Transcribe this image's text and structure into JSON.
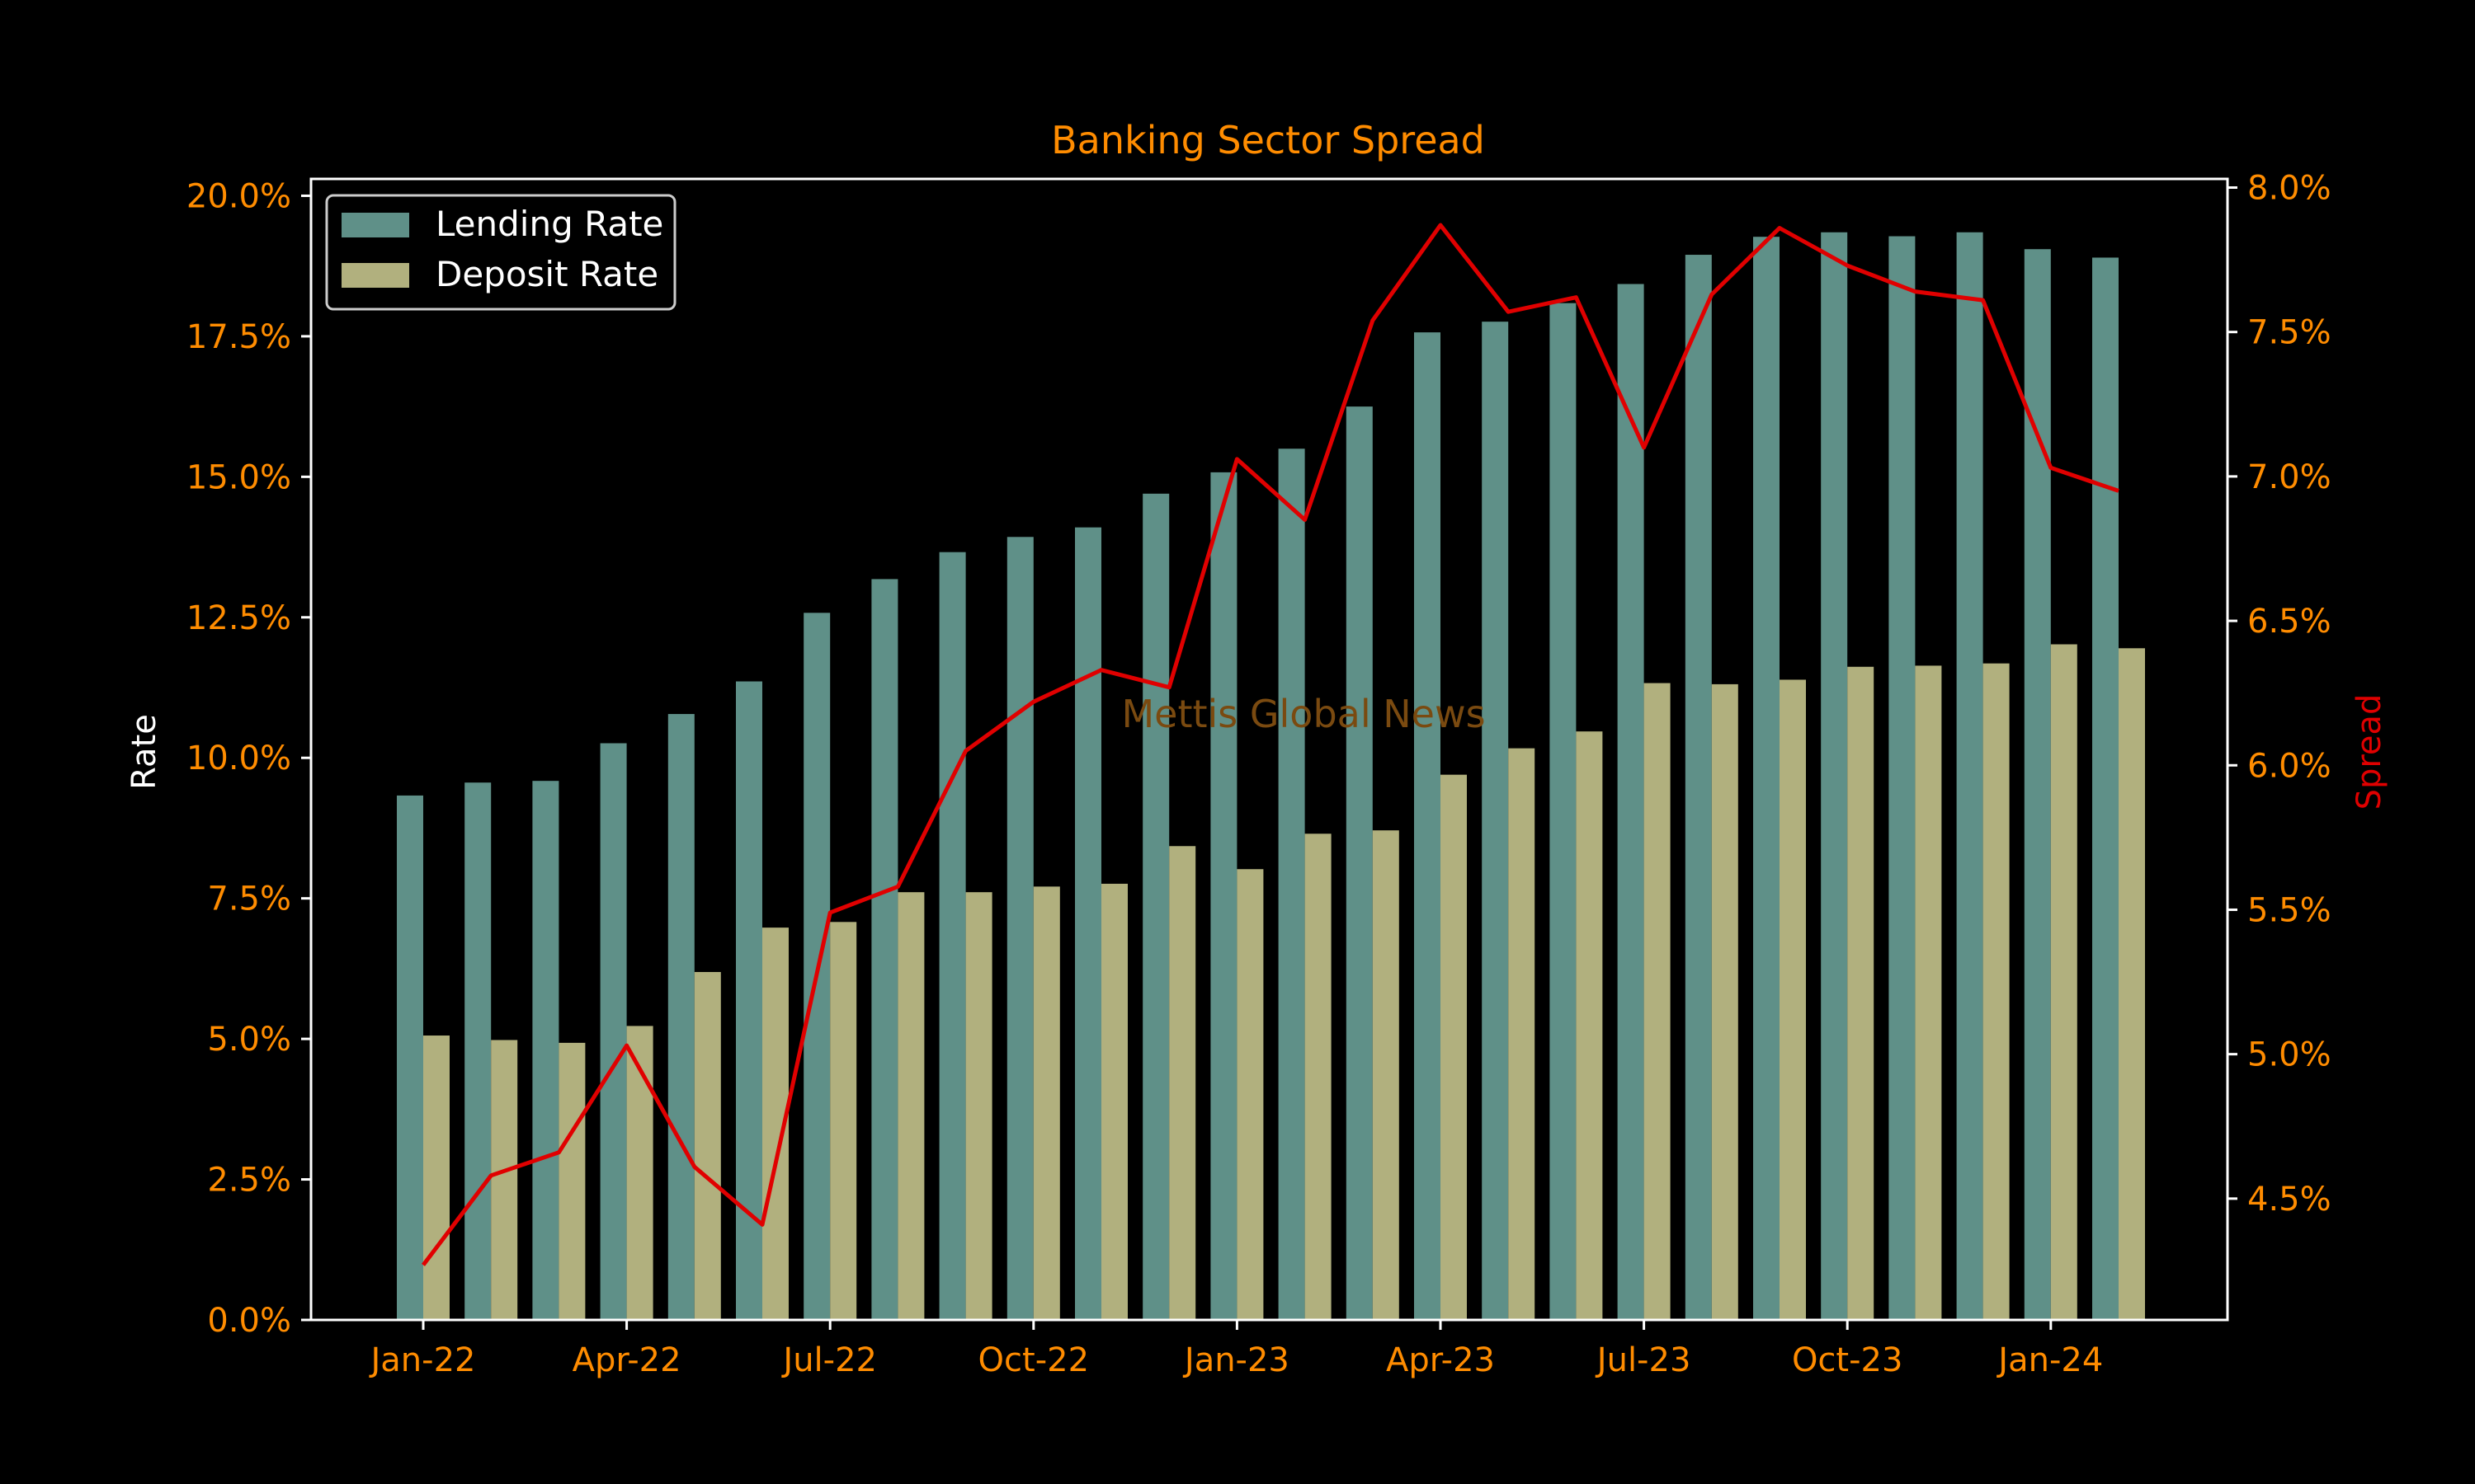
{
  "chart_data": {
    "type": "bar",
    "title": "Banking Sector Spread",
    "ylabel": "Rate",
    "y2label": "Spread",
    "watermark": "Mettis Global News",
    "x": [
      "2022-01",
      "2022-02",
      "2022-03",
      "2022-04",
      "2022-05",
      "2022-06",
      "2022-07",
      "2022-08",
      "2022-09",
      "2022-10",
      "2022-11",
      "2022-12",
      "2023-01",
      "2023-02",
      "2023-03",
      "2023-04",
      "2023-05",
      "2023-06",
      "2023-07",
      "2023-08",
      "2023-09",
      "2023-10",
      "2023-11",
      "2023-12",
      "2024-01",
      "2024-02"
    ],
    "xtick_labels": [
      "Jan-22",
      "Apr-22",
      "Jul-22",
      "Oct-22",
      "Jan-23",
      "Apr-23",
      "Jul-23",
      "Oct-23",
      "Jan-24"
    ],
    "ylim": [
      0,
      20.3
    ],
    "yticks": [
      0,
      2.5,
      5,
      7.5,
      10,
      12.5,
      15,
      17.5,
      20
    ],
    "ytick_labels": [
      "0.0%",
      "2.5%",
      "5.0%",
      "7.5%",
      "10.0%",
      "12.5%",
      "15.0%",
      "17.5%",
      "20.0%"
    ],
    "y2lim": [
      4.08,
      8.03
    ],
    "y2ticks": [
      4.5,
      5,
      5.5,
      6,
      6.5,
      7,
      7.5,
      8
    ],
    "y2tick_labels": [
      "4.5%",
      "5.0%",
      "5.5%",
      "6.0%",
      "6.5%",
      "7.0%",
      "7.5%",
      "8.0%"
    ],
    "legend": "top-left",
    "grid": false,
    "colors": {
      "background": "#000000",
      "axes": "#ffffff",
      "ticks": "#ff8c00",
      "title": "#ff8c00",
      "lending": "#5f9088",
      "deposit": "#b1b07e",
      "spread": "#e00000",
      "y2label": "#e00000",
      "watermark": "#7a4a10"
    },
    "series": [
      {
        "name": "Lending Rate",
        "kind": "bar",
        "axis": "left",
        "values": [
          9.33,
          9.56,
          9.59,
          10.26,
          10.78,
          11.36,
          12.58,
          13.18,
          13.66,
          13.93,
          14.1,
          14.7,
          15.08,
          15.5,
          16.25,
          17.57,
          17.76,
          18.09,
          18.43,
          18.95,
          19.27,
          19.35,
          19.28,
          19.35,
          19.05,
          18.9
        ]
      },
      {
        "name": "Deposit Rate",
        "kind": "bar",
        "axis": "left",
        "values": [
          5.06,
          4.98,
          4.93,
          5.23,
          6.19,
          6.98,
          7.08,
          7.61,
          7.61,
          7.71,
          7.76,
          8.43,
          8.02,
          8.65,
          8.71,
          9.7,
          10.17,
          10.47,
          11.33,
          11.31,
          11.39,
          11.62,
          11.64,
          11.68,
          12.02,
          11.95
        ]
      },
      {
        "name": "Spread",
        "kind": "line",
        "axis": "right",
        "values": [
          4.27,
          4.58,
          4.66,
          5.03,
          4.61,
          4.41,
          5.49,
          5.58,
          6.05,
          6.22,
          6.33,
          6.27,
          7.06,
          6.85,
          7.54,
          7.87,
          7.57,
          7.62,
          7.1,
          7.63,
          7.86,
          7.73,
          7.64,
          7.61,
          7.03,
          6.95
        ]
      }
    ]
  }
}
